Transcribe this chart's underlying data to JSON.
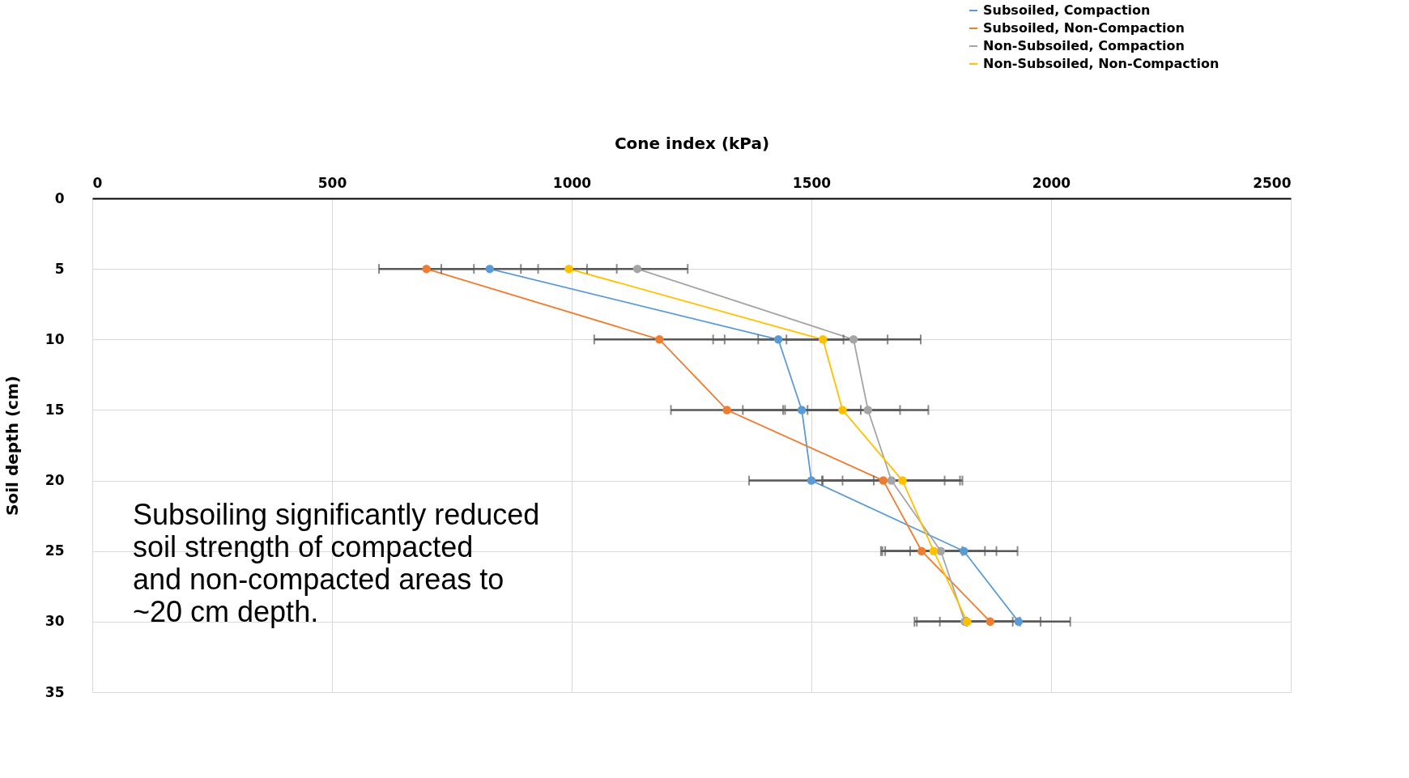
{
  "chart_data": {
    "type": "line",
    "orientation": "horizontal",
    "xlabel": "Cone index (kPa)",
    "ylabel": "Soil depth (cm)",
    "x": [
      5,
      10,
      15,
      20,
      25,
      30
    ],
    "series": [
      {
        "name": "Subsoiled, Compaction",
        "color": "#5b9bd5",
        "values": [
          829,
          1431,
          1480,
          1500,
          1818,
          1932
        ],
        "errors": [
          101,
          136,
          123,
          130,
          112,
          108
        ]
      },
      {
        "name": "Subsoiled, Non-Compaction",
        "color": "#ed7d31",
        "values": [
          697,
          1183,
          1324,
          1650,
          1730,
          1873
        ],
        "errors": [
          99,
          136,
          117,
          128,
          85,
          105
        ]
      },
      {
        "name": "Non-Subsoiled, Compaction",
        "color": "#a5a5a5",
        "values": [
          1137,
          1588,
          1618,
          1667,
          1770,
          1820
        ],
        "errors": [
          105,
          140,
          126,
          143,
          116,
          100
        ]
      },
      {
        "name": "Non-Subsoiled, Non-Compaction",
        "color": "#ffc000",
        "values": [
          994,
          1524,
          1565,
          1690,
          1755,
          1825
        ],
        "errors": [
          100,
          135,
          120,
          125,
          107,
          110
        ]
      }
    ],
    "xlim": [
      0,
      2500
    ],
    "xticks": [
      0,
      500,
      1000,
      1500,
      2000,
      2500
    ],
    "ylim": [
      35,
      0
    ],
    "yticks": [
      0,
      5,
      10,
      15,
      20,
      25,
      30,
      35
    ],
    "grid": true,
    "legend": "top right",
    "marker": "circle",
    "line_style": "solid",
    "annotations": [
      "Subsoiling significantly reduced\nsoil strength of compacted\nand non-compacted areas to\n~20 cm depth."
    ]
  }
}
